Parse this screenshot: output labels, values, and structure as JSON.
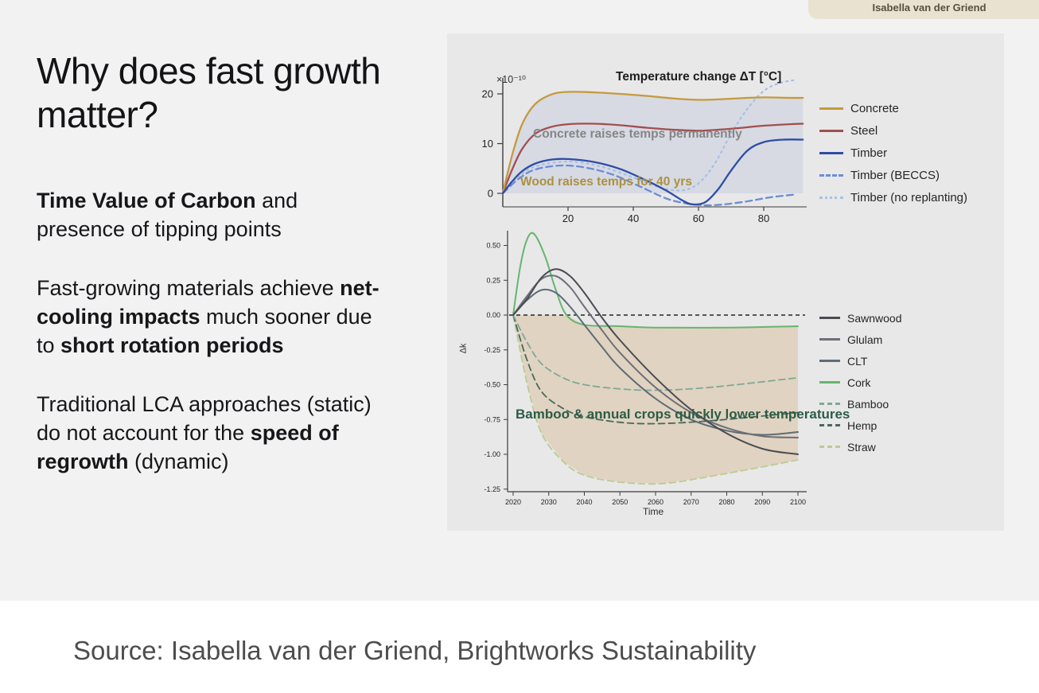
{
  "badge": {
    "text": "Isabella van der Griend",
    "bg_color": "#e9e2d1"
  },
  "left": {
    "title": "Why does fast growth matter?",
    "paragraphs": [
      {
        "segments": [
          {
            "text": "Time Value of Carbon",
            "bold": true
          },
          {
            "text": " and presence of tipping points",
            "bold": false
          }
        ]
      },
      {
        "segments": [
          {
            "text": "Fast-growing materials achieve ",
            "bold": false
          },
          {
            "text": "net-cooling impacts",
            "bold": true
          },
          {
            "text": " much sooner due to ",
            "bold": false
          },
          {
            "text": "short rotation periods",
            "bold": true
          }
        ]
      },
      {
        "segments": [
          {
            "text": "Traditional LCA approaches (static) do not account for the ",
            "bold": false
          },
          {
            "text": "speed of regrowth",
            "bold": true
          },
          {
            "text": " (dynamic)",
            "bold": false
          }
        ]
      }
    ]
  },
  "source": {
    "text": "Source: Isabella van der Griend, Brightworks Sustainability"
  },
  "chart_data": [
    {
      "type": "line",
      "title": "Temperature change ΔT [°C]",
      "y_axis_note": "×10⁻¹⁰",
      "xlim": [
        0,
        92
      ],
      "ylim": [
        -3,
        23
      ],
      "xticks": [
        20,
        40,
        60,
        80
      ],
      "yticks": [
        "20",
        "10",
        "0"
      ],
      "legend_position": "right",
      "grid": false,
      "series": [
        {
          "name": "Concrete",
          "color": "#c49a3f",
          "style": "solid",
          "x": [
            0,
            3,
            6,
            10,
            15,
            20,
            28,
            36,
            44,
            52,
            60,
            66,
            72,
            80,
            88,
            92
          ],
          "y": [
            0,
            8,
            14,
            18,
            19.9,
            20.4,
            20.3,
            20,
            19.6,
            19.1,
            18.8,
            18.9,
            19.1,
            19.3,
            19.2,
            19.2
          ]
        },
        {
          "name": "Steel",
          "color": "#a14f4f",
          "style": "solid",
          "x": [
            0,
            3,
            6,
            10,
            15,
            20,
            28,
            36,
            44,
            52,
            60,
            66,
            72,
            80,
            88,
            92
          ],
          "y": [
            0,
            5,
            9,
            12,
            13.4,
            13.9,
            14,
            13.7,
            13.2,
            12.8,
            12.6,
            12.8,
            13.1,
            13.6,
            13.9,
            14
          ]
        },
        {
          "name": "Timber",
          "color": "#2e4da6",
          "style": "solid",
          "x": [
            0,
            3,
            6,
            10,
            15,
            20,
            28,
            36,
            44,
            50,
            55,
            58,
            62,
            66,
            70,
            75,
            80,
            86,
            92
          ],
          "y": [
            0,
            2.5,
            4.5,
            6,
            6.8,
            6.9,
            6.3,
            4.9,
            2.6,
            0.6,
            -1.4,
            -2.2,
            -1.8,
            0.8,
            4.6,
            8.6,
            10.3,
            10.8,
            10.8
          ]
        },
        {
          "name": "Timber (BECCS)",
          "color": "#6b8cd6",
          "style": "dashed",
          "x": [
            0,
            5,
            10,
            18,
            26,
            34,
            42,
            50,
            56,
            62,
            68,
            75,
            82,
            90
          ],
          "y": [
            0,
            3,
            4.8,
            5.6,
            5.1,
            3.7,
            1.4,
            -1,
            -2,
            -2.4,
            -2.2,
            -1.6,
            -0.8,
            -0.2
          ]
        },
        {
          "name": "Timber (no replanting)",
          "color": "#a9c0e4",
          "style": "dotted",
          "x": [
            0,
            5,
            10,
            20,
            30,
            40,
            48,
            55,
            60,
            65,
            70,
            75,
            80,
            85,
            90
          ],
          "y": [
            0,
            3.4,
            5.4,
            6.4,
            5.4,
            3.2,
            1.2,
            0.6,
            2,
            6,
            12,
            17,
            20.6,
            22.2,
            22.8
          ]
        }
      ],
      "annotations": [
        {
          "text": "Concrete raises temps permanently",
          "color": "#868686"
        },
        {
          "text": "Wood raises temps for 40 yrs",
          "color": "#ab9140"
        }
      ]
    },
    {
      "type": "line",
      "xlabel": "Time",
      "ylabel": "Δk",
      "xlim": [
        2020,
        2100
      ],
      "ylim": [
        -1.3,
        0.6
      ],
      "xticks": [
        2020,
        2030,
        2040,
        2050,
        2060,
        2070,
        2080,
        2090,
        2100
      ],
      "yticks": [
        "0.50",
        "0.25",
        "0.00",
        "-0.25",
        "-0.50",
        "-0.75",
        "-1.00",
        "-1.25"
      ],
      "zero_line": true,
      "legend_position": "right",
      "grid": false,
      "annotation": "Bamboo & annual crops quickly lower temperatures",
      "annotation_color": "#2d5c46",
      "series": [
        {
          "name": "Sawnwood",
          "color": "#4b4b52",
          "style": "solid",
          "x": [
            2020,
            2024,
            2028,
            2032,
            2036,
            2040,
            2045,
            2050,
            2060,
            2070,
            2080,
            2090,
            2100
          ],
          "y": [
            0,
            0.12,
            0.27,
            0.33,
            0.28,
            0.16,
            -0.02,
            -0.18,
            -0.45,
            -0.68,
            -0.85,
            -0.96,
            -1.0
          ]
        },
        {
          "name": "Glulam",
          "color": "#6f6f78",
          "style": "solid",
          "x": [
            2020,
            2024,
            2028,
            2032,
            2036,
            2040,
            2045,
            2050,
            2060,
            2070,
            2080,
            2090,
            2100
          ],
          "y": [
            0,
            0.14,
            0.26,
            0.28,
            0.2,
            0.06,
            -0.11,
            -0.27,
            -0.52,
            -0.7,
            -0.81,
            -0.87,
            -0.88
          ]
        },
        {
          "name": "CLT",
          "color": "#5e6c76",
          "style": "solid",
          "x": [
            2020,
            2024,
            2028,
            2032,
            2036,
            2040,
            2045,
            2050,
            2060,
            2070,
            2080,
            2090,
            2100
          ],
          "y": [
            0,
            0.11,
            0.18,
            0.16,
            0.06,
            -0.07,
            -0.23,
            -0.38,
            -0.6,
            -0.75,
            -0.83,
            -0.86,
            -0.84
          ]
        },
        {
          "name": "Cork",
          "color": "#66b56e",
          "style": "solid",
          "x": [
            2020,
            2022,
            2024,
            2026,
            2029,
            2032,
            2035,
            2040,
            2050,
            2060,
            2080,
            2100
          ],
          "y": [
            0,
            0.35,
            0.55,
            0.58,
            0.42,
            0.18,
            0,
            -0.07,
            -0.08,
            -0.09,
            -0.09,
            -0.08
          ]
        },
        {
          "name": "Bamboo",
          "color": "#7fa895",
          "style": "dashed",
          "x": [
            2020,
            2024,
            2028,
            2034,
            2040,
            2050,
            2060,
            2075,
            2100
          ],
          "y": [
            0,
            -0.2,
            -0.35,
            -0.45,
            -0.5,
            -0.53,
            -0.54,
            -0.52,
            -0.45
          ]
        },
        {
          "name": "Hemp",
          "color": "#49695a",
          "style": "dashed",
          "x": [
            2020,
            2024,
            2028,
            2034,
            2040,
            2050,
            2060,
            2075,
            2100
          ],
          "y": [
            0,
            -0.33,
            -0.55,
            -0.67,
            -0.73,
            -0.77,
            -0.78,
            -0.76,
            -0.7
          ]
        },
        {
          "name": "Straw",
          "color": "#bccb93",
          "style": "dashed",
          "x": [
            2020,
            2024,
            2028,
            2034,
            2040,
            2050,
            2062,
            2075,
            2090,
            2100
          ],
          "y": [
            0,
            -0.5,
            -0.85,
            -1.05,
            -1.15,
            -1.2,
            -1.21,
            -1.16,
            -1.09,
            -1.04
          ]
        }
      ]
    }
  ]
}
